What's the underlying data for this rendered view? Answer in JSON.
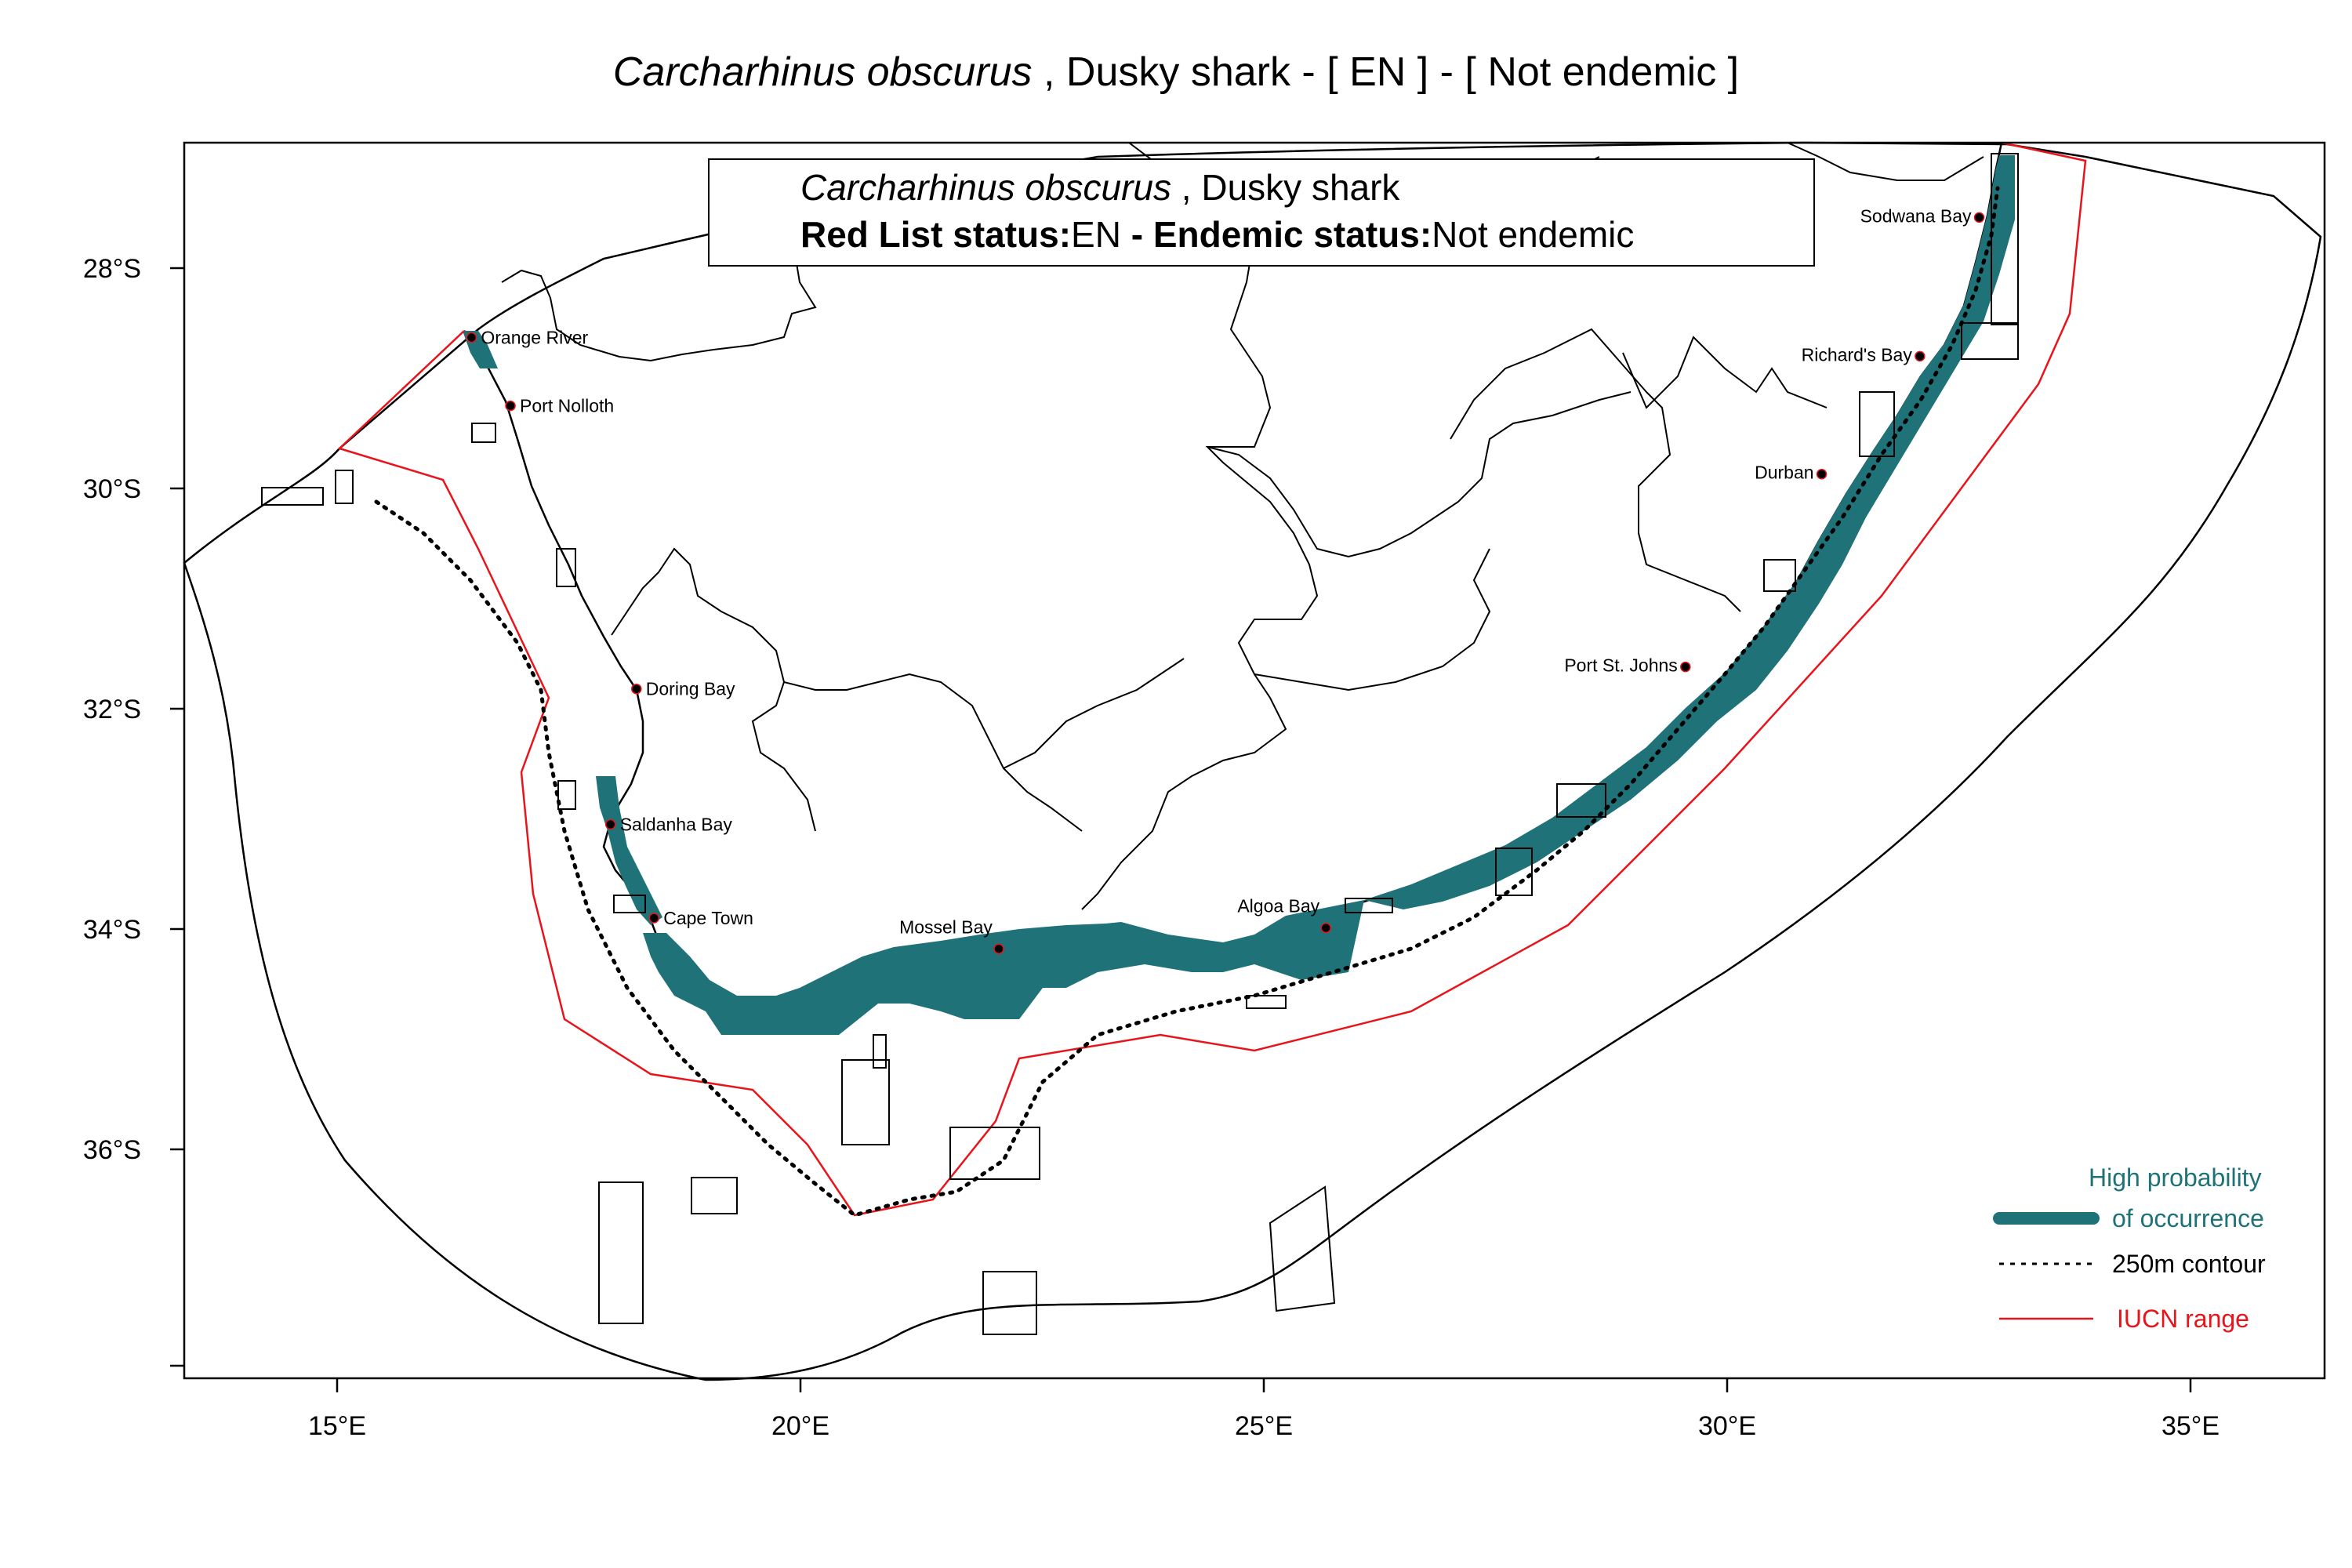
{
  "title": {
    "species": "Carcharhinus obscurus",
    "rest": " , Dusky shark  - [ EN ] - [ Not endemic ]"
  },
  "info_box": {
    "species": "Carcharhinus obscurus",
    "common": " , Dusky shark",
    "status_label": "Red List status:",
    "status_value": "EN",
    "endemic_label": " - Endemic status:",
    "endemic_value": "Not endemic"
  },
  "legend": {
    "occurrence_line1": "High probability",
    "occurrence_line2": "of occurrence",
    "contour": "250m contour",
    "iucn": "IUCN range"
  },
  "colors": {
    "occurrence": "#1f7278",
    "iucn": "#e8141b",
    "contour": "#000000",
    "border": "#000000"
  },
  "axes": {
    "x_ticks": [
      {
        "label": "15°E",
        "lon": 15
      },
      {
        "label": "20°E",
        "lon": 20
      },
      {
        "label": "25°E",
        "lon": 25
      },
      {
        "label": "30°E",
        "lon": 30
      },
      {
        "label": "35°E",
        "lon": 35
      }
    ],
    "y_ticks": [
      {
        "label": "28°S",
        "lat": -28
      },
      {
        "label": "30°S",
        "lat": -30
      },
      {
        "label": "32°S",
        "lat": -32
      },
      {
        "label": "34°S",
        "lat": -34
      },
      {
        "label": "36°S",
        "lat": -36
      }
    ]
  },
  "places": [
    {
      "name": "Orange River",
      "lon": 16.45,
      "lat": -28.63
    },
    {
      "name": "Port Nolloth",
      "lon": 16.87,
      "lat": -29.25
    },
    {
      "name": "Doring Bay",
      "lon": 18.23,
      "lat": -31.82
    },
    {
      "name": "Saldanha Bay",
      "lon": 17.95,
      "lat": -33.05
    },
    {
      "name": "Cape Town",
      "lon": 18.42,
      "lat": -33.9
    },
    {
      "name": "Mossel Bay",
      "lon": 22.14,
      "lat": -34.18
    },
    {
      "name": "Algoa Bay",
      "lon": 25.67,
      "lat": -33.99
    },
    {
      "name": "Port St. Johns",
      "lon": 29.55,
      "lat": -31.62
    },
    {
      "name": "Durban",
      "lon": 31.02,
      "lat": -29.87
    },
    {
      "name": "Richard's Bay",
      "lon": 32.08,
      "lat": -28.8
    },
    {
      "name": "Sodwana Bay",
      "lon": 32.72,
      "lat": -27.54
    }
  ]
}
